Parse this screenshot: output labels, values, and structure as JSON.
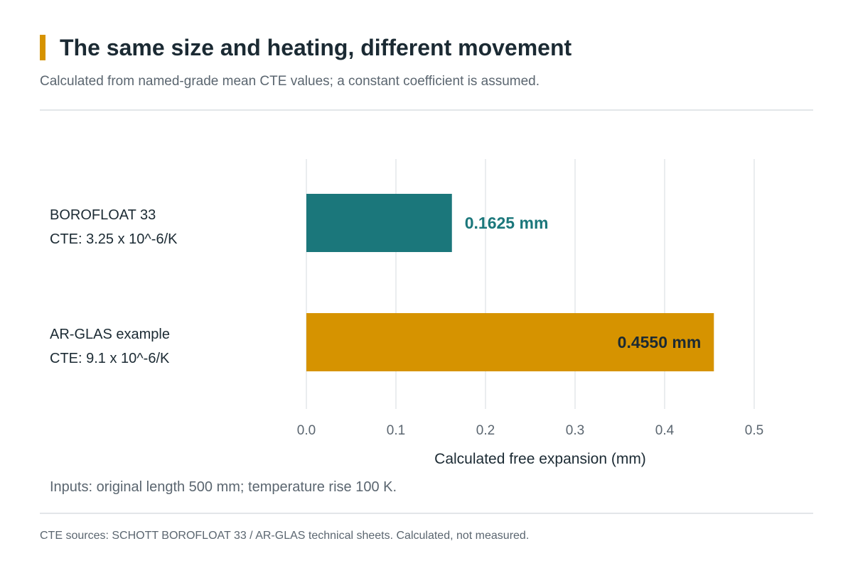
{
  "header": {
    "title": "The same size and heating, different movement",
    "subtitle": "Calculated from named-grade mean CTE values; a constant coefficient is assumed."
  },
  "colors": {
    "accent": "#d69300",
    "borofloat": "#1b777b",
    "arglas": "#d69300",
    "gridline": "#e4e7ea",
    "value_label_teal": "#1b777b",
    "value_label_dark": "#1b2a33"
  },
  "chart_data": {
    "type": "bar",
    "orientation": "horizontal",
    "categories": [
      {
        "name": "BOROFLOAT 33",
        "cte_label": "CTE: 3.25 x 10^-6/K"
      },
      {
        "name": "AR-GLAS example",
        "cte_label": "CTE: 9.1 x 10^-6/K"
      }
    ],
    "values": [
      0.1625,
      0.455
    ],
    "value_labels": [
      "0.1625 mm",
      "0.4550 mm"
    ],
    "bar_colors": [
      "#1b777b",
      "#d69300"
    ],
    "value_label_position": [
      "outside",
      "inside-end"
    ],
    "xlabel": "Calculated free expansion (mm)",
    "xlim": [
      0,
      0.5
    ],
    "x_ticks": [
      0,
      0.1,
      0.2,
      0.3,
      0.4,
      0.5
    ],
    "x_tick_labels": [
      "0.0",
      "0.1",
      "0.2",
      "0.3",
      "0.4",
      "0.5"
    ],
    "grid": "vertical"
  },
  "footer": {
    "inputs_note": "Inputs: original length 500 mm; temperature rise 100 K.",
    "source": "CTE sources: SCHOTT BOROFLOAT 33 / AR-GLAS technical sheets. Calculated, not measured."
  }
}
